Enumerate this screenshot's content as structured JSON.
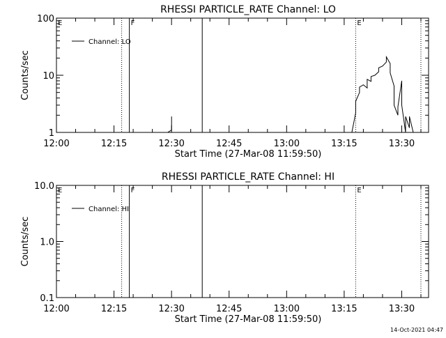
{
  "chart_data": [
    {
      "type": "line",
      "title": "RHESSI PARTICLE_RATE Channel: LO",
      "xlabel": "Start Time (27-Mar-08 11:59:50)",
      "ylabel": "Counts/sec",
      "yscale": "log",
      "ylim": [
        1,
        100
      ],
      "xlim": [
        "12:00",
        "13:37"
      ],
      "x_ticks": [
        "12:00",
        "12:15",
        "12:30",
        "12:45",
        "13:00",
        "13:15",
        "13:30"
      ],
      "y_ticks": [
        "1",
        "10",
        "100"
      ],
      "legend": {
        "label": "Channel: LO",
        "position": "top-left"
      },
      "markers": [
        {
          "label": "E",
          "time": "12:00",
          "style": "none"
        },
        {
          "label": "",
          "time": "12:17",
          "style": "dotted"
        },
        {
          "label": "F",
          "time": "12:19",
          "style": "solid"
        },
        {
          "label": "",
          "time": "12:38",
          "style": "solid"
        },
        {
          "label": "E",
          "time": "13:18",
          "style": "dotted"
        },
        {
          "label": "",
          "time": "13:35",
          "style": "dotted"
        }
      ],
      "series": [
        {
          "segments": [
            {
              "x": [
                "12:29",
                "12:30",
                "12:30"
              ],
              "y": [
                1,
                1.1,
                1.9
              ]
            },
            {
              "x": [
                "13:17",
                "13:18",
                "13:18",
                "13:19",
                "13:19",
                "13:20",
                "13:21",
                "13:21",
                "13:22",
                "13:22",
                "13:23",
                "13:24",
                "13:24",
                "13:25",
                "13:26",
                "13:26",
                "13:27",
                "13:27",
                "13:28",
                "13:28",
                "13:29",
                "13:29",
                "13:30",
                "13:30",
                "13:30",
                "13:31",
                "13:31",
                "13:32",
                "13:32",
                "13:33"
              ],
              "y": [
                1,
                2.2,
                3.5,
                5,
                6.2,
                6.8,
                6,
                8.5,
                7.8,
                9.5,
                10,
                11.5,
                13.5,
                14.5,
                17,
                21,
                16,
                11,
                6.5,
                3,
                2,
                2.8,
                8,
                7.5,
                3,
                1,
                1.9,
                1.2,
                1.9,
                1
              ]
            }
          ]
        }
      ]
    },
    {
      "type": "line",
      "title": "RHESSI PARTICLE_RATE Channel: HI",
      "xlabel": "Start Time (27-Mar-08 11:59:50)",
      "ylabel": "Counts/sec",
      "yscale": "log",
      "ylim": [
        0.1,
        10
      ],
      "xlim": [
        "12:00",
        "13:37"
      ],
      "x_ticks": [
        "12:00",
        "12:15",
        "12:30",
        "12:45",
        "13:00",
        "13:15",
        "13:30"
      ],
      "y_ticks": [
        "0.1",
        "1.0",
        "10.0"
      ],
      "legend": {
        "label": "Channel: HI",
        "position": "top-left"
      },
      "markers": [
        {
          "label": "E",
          "time": "12:00",
          "style": "none"
        },
        {
          "label": "",
          "time": "12:17",
          "style": "dotted"
        },
        {
          "label": "F",
          "time": "12:19",
          "style": "solid"
        },
        {
          "label": "",
          "time": "12:38",
          "style": "solid"
        },
        {
          "label": "E",
          "time": "13:18",
          "style": "dotted"
        },
        {
          "label": "",
          "time": "13:35",
          "style": "dotted"
        }
      ],
      "series": [
        {
          "segments": []
        }
      ]
    }
  ],
  "footer": {
    "timestamp": "14-Oct-2021 04:47"
  }
}
